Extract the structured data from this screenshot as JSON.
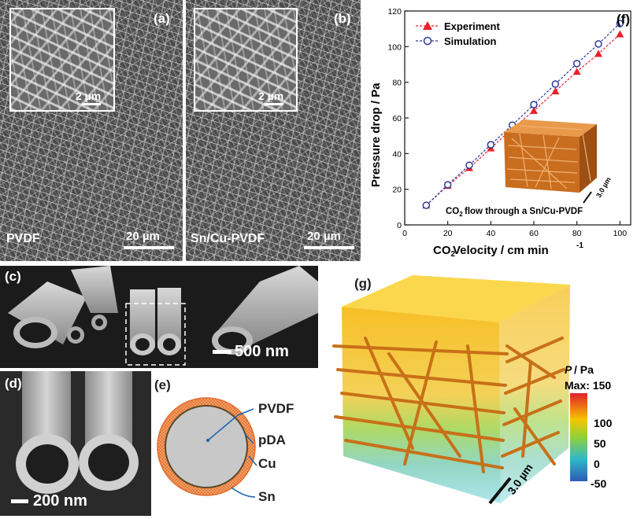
{
  "panel_a": {
    "label": "(a)",
    "material": "PVDF",
    "scale_main": "20 µm",
    "scale_inset": "2 µm"
  },
  "panel_b": {
    "label": "(b)",
    "material": "Sn/Cu-PVDF",
    "scale_main": "20 µm",
    "scale_inset": "2 µm"
  },
  "panel_c": {
    "label": "(c)",
    "scale": "500 nm"
  },
  "panel_d": {
    "label": "(d)",
    "scale": "200 nm"
  },
  "panel_e": {
    "label": "(e)",
    "layers": [
      "PVDF",
      "pDA",
      "Cu",
      "Sn"
    ],
    "colors": {
      "core": "#c8c8c8",
      "pda": "#5a4a2a",
      "cu": "#f2a66a",
      "sn": "#e36b2e"
    }
  },
  "panel_f": {
    "label": "(f)",
    "inset_scale": "3.0 µm",
    "inset_caption": "flow through a Sn/Cu-PVDF"
  },
  "panel_g": {
    "label": "(g)",
    "scale": "3.0 µm",
    "colorbar_title": "/ Pa",
    "colorbar_var": "P",
    "colorbar_max": "Max: 150",
    "colorbar_ticks": [
      "100",
      "50",
      "0",
      "-50"
    ]
  },
  "chart_data": {
    "type": "line",
    "xlabel": "Velocity / cm min",
    "ylabel": "Pressure drop / Pa",
    "xlim": [
      0,
      105
    ],
    "ylim": [
      0,
      120
    ],
    "xticks": [
      0,
      20,
      40,
      60,
      80,
      100
    ],
    "yticks": [
      0,
      20,
      40,
      60,
      80,
      100,
      120
    ],
    "legend_position": "top-left",
    "x": [
      10,
      20,
      30,
      40,
      50,
      60,
      70,
      80,
      90,
      100
    ],
    "series": [
      {
        "name": "Experiment",
        "marker": "triangle",
        "color": "#e8202a",
        "values": [
          11,
          22,
          32,
          43,
          54,
          64,
          75,
          86,
          96,
          107
        ]
      },
      {
        "name": "Simulation",
        "marker": "circle",
        "color": "#2b3a9a",
        "values": [
          11,
          22.5,
          33.5,
          45,
          56,
          67.5,
          79,
          90.5,
          101.5,
          113
        ]
      }
    ]
  }
}
